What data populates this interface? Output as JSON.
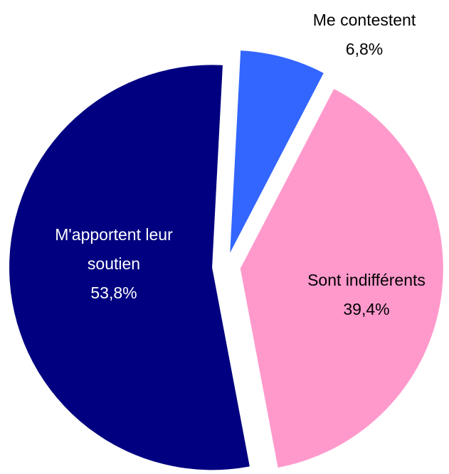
{
  "chart_data": {
    "type": "pie",
    "categories": [
      "Me contestent",
      "Sont indifférents",
      "M'apportent leur soutien"
    ],
    "values": [
      6.8,
      39.4,
      53.8
    ],
    "value_labels": [
      "6,8%",
      "39,4%",
      "53,8%"
    ],
    "colors": [
      "#3366ff",
      "#ff99cc",
      "#000080"
    ],
    "label_colors": [
      "#000000",
      "#000000",
      "#ffffff"
    ],
    "exploded": true
  }
}
